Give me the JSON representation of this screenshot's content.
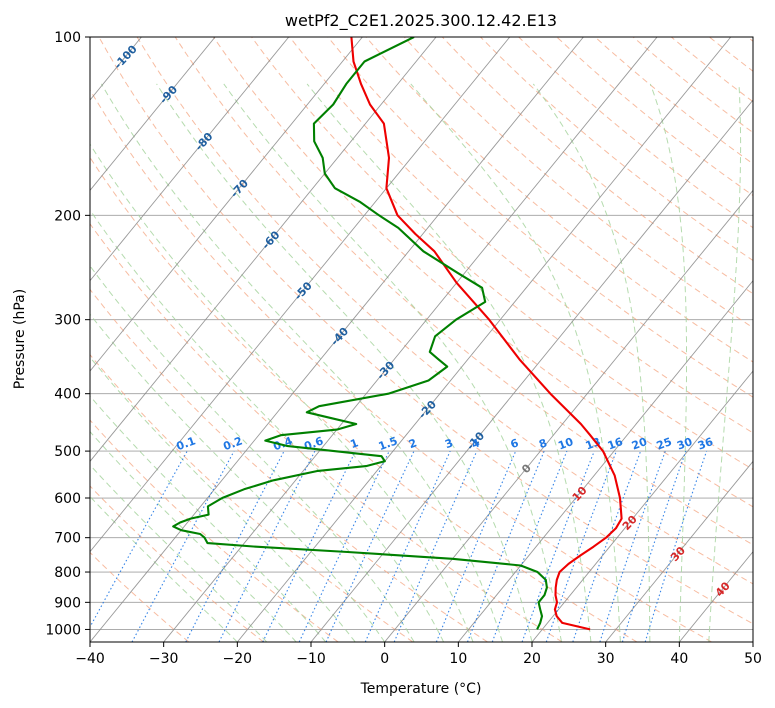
{
  "chart_data": {
    "type": "line",
    "title": "wetPf2_C2E1.2025.300.12.42.E13",
    "xlabel": "Temperature (°C)",
    "ylabel": "Pressure (hPa)",
    "xlim": [
      -40,
      50
    ],
    "ylim": [
      1050,
      100
    ],
    "y_scale": "log",
    "x_ticks": [
      -40,
      -30,
      -20,
      -10,
      0,
      10,
      20,
      30,
      40,
      50
    ],
    "y_ticks": [
      100,
      200,
      300,
      400,
      500,
      600,
      700,
      800,
      900,
      1000
    ],
    "grid": true,
    "colors": {
      "temperature": "#ee0000",
      "dewpoint": "#008000",
      "isotherms": "#888888",
      "dry_adiabats": "#f4a582",
      "moist_adiabats": "#a8d5a0",
      "mixing_ratio": "#1f77e4",
      "isotherm_label": "#1f5f9f"
    },
    "series": [
      {
        "name": "temperature",
        "points": [
          [
            1000,
            26.5
          ],
          [
            975,
            22.0
          ],
          [
            950,
            20.5
          ],
          [
            925,
            19.5
          ],
          [
            900,
            19.0
          ],
          [
            875,
            18.0
          ],
          [
            850,
            17.2
          ],
          [
            825,
            16.5
          ],
          [
            800,
            16.0
          ],
          [
            775,
            16.3
          ],
          [
            750,
            17.0
          ],
          [
            725,
            17.8
          ],
          [
            700,
            18.5
          ],
          [
            675,
            18.8
          ],
          [
            650,
            18.5
          ],
          [
            600,
            16.0
          ],
          [
            550,
            12.8
          ],
          [
            500,
            8.5
          ],
          [
            470,
            5.0
          ],
          [
            450,
            2.5
          ],
          [
            400,
            -5.0
          ],
          [
            350,
            -13.0
          ],
          [
            300,
            -21.5
          ],
          [
            260,
            -30.0
          ],
          [
            230,
            -36.5
          ],
          [
            215,
            -41.0
          ],
          [
            200,
            -45.5
          ],
          [
            180,
            -50.0
          ],
          [
            160,
            -53.0
          ],
          [
            140,
            -57.5
          ],
          [
            130,
            -61.5
          ],
          [
            120,
            -65.0
          ],
          [
            110,
            -68.5
          ],
          [
            100,
            -71.5
          ]
        ]
      },
      {
        "name": "dewpoint",
        "points": [
          [
            1000,
            19.3
          ],
          [
            975,
            19.0
          ],
          [
            950,
            18.5
          ],
          [
            925,
            17.5
          ],
          [
            900,
            16.5
          ],
          [
            875,
            16.5
          ],
          [
            850,
            16.0
          ],
          [
            825,
            15.0
          ],
          [
            800,
            13.0
          ],
          [
            780,
            10.0
          ],
          [
            760,
            0.0
          ],
          [
            740,
            -15.0
          ],
          [
            725,
            -28.0
          ],
          [
            715,
            -35.0
          ],
          [
            700,
            -36.0
          ],
          [
            690,
            -37.0
          ],
          [
            680,
            -40.0
          ],
          [
            670,
            -41.5
          ],
          [
            660,
            -41.0
          ],
          [
            650,
            -40.0
          ],
          [
            640,
            -38.0
          ],
          [
            620,
            -39.0
          ],
          [
            600,
            -38.0
          ],
          [
            580,
            -36.0
          ],
          [
            560,
            -33.0
          ],
          [
            540,
            -28.0
          ],
          [
            530,
            -22.0
          ],
          [
            520,
            -20.0
          ],
          [
            510,
            -21.0
          ],
          [
            500,
            -28.0
          ],
          [
            490,
            -35.0
          ],
          [
            480,
            -38.5
          ],
          [
            470,
            -37.0
          ],
          [
            460,
            -30.0
          ],
          [
            450,
            -28.0
          ],
          [
            440,
            -32.0
          ],
          [
            430,
            -36.0
          ],
          [
            420,
            -35.0
          ],
          [
            400,
            -27.0
          ],
          [
            380,
            -23.0
          ],
          [
            360,
            -22.0
          ],
          [
            350,
            -24.0
          ],
          [
            340,
            -26.0
          ],
          [
            320,
            -27.0
          ],
          [
            300,
            -26.0
          ],
          [
            280,
            -24.0
          ],
          [
            265,
            -26.0
          ],
          [
            250,
            -31.0
          ],
          [
            230,
            -38.0
          ],
          [
            210,
            -44.0
          ],
          [
            200,
            -48.0
          ],
          [
            190,
            -52.0
          ],
          [
            180,
            -57.0
          ],
          [
            170,
            -60.0
          ],
          [
            160,
            -62.0
          ],
          [
            150,
            -65.0
          ],
          [
            140,
            -67.0
          ],
          [
            130,
            -66.5
          ],
          [
            120,
            -67.0
          ],
          [
            110,
            -67.0
          ],
          [
            100,
            -63.0
          ]
        ]
      }
    ],
    "annotations": {
      "isotherm_labels": [
        -100,
        -90,
        -80,
        -70,
        -60,
        -50,
        -40,
        -30,
        -20,
        -10,
        0,
        10,
        20,
        30,
        40
      ],
      "mixing_ratio_labels": [
        "0.1",
        "0.2",
        "0.4",
        "0.6",
        "1",
        "1.5",
        "2",
        "3",
        "4",
        "6",
        "8",
        "10",
        "13",
        "16",
        "20",
        "25",
        "30",
        "36"
      ]
    }
  }
}
